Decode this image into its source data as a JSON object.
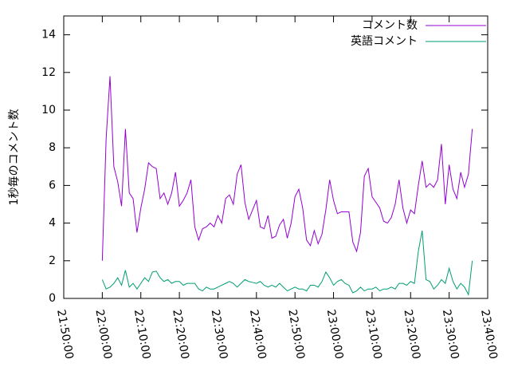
{
  "chart_data": {
    "type": "line",
    "ylabel": "1秒毎のコメント数",
    "xlim": [
      "21:50:00",
      "23:40:00"
    ],
    "xticks": [
      "21:50:00",
      "22:00:00",
      "22:10:00",
      "22:20:00",
      "22:30:00",
      "22:40:00",
      "22:50:00",
      "23:00:00",
      "23:10:00",
      "23:20:00",
      "23:30:00",
      "23:40:00"
    ],
    "ylim": [
      0,
      15
    ],
    "yticks": [
      0,
      2,
      4,
      6,
      8,
      10,
      12,
      14
    ],
    "legend": "top-right",
    "x": [
      "22:00:00",
      "22:01:00",
      "22:02:00",
      "22:03:00",
      "22:04:00",
      "22:05:00",
      "22:06:00",
      "22:07:00",
      "22:08:00",
      "22:09:00",
      "22:10:00",
      "22:11:00",
      "22:12:00",
      "22:13:00",
      "22:14:00",
      "22:15:00",
      "22:16:00",
      "22:17:00",
      "22:18:00",
      "22:19:00",
      "22:20:00",
      "22:21:00",
      "22:22:00",
      "22:23:00",
      "22:24:00",
      "22:25:00",
      "22:26:00",
      "22:27:00",
      "22:28:00",
      "22:29:00",
      "22:30:00",
      "22:31:00",
      "22:32:00",
      "22:33:00",
      "22:34:00",
      "22:35:00",
      "22:36:00",
      "22:37:00",
      "22:38:00",
      "22:39:00",
      "22:40:00",
      "22:41:00",
      "22:42:00",
      "22:43:00",
      "22:44:00",
      "22:45:00",
      "22:46:00",
      "22:47:00",
      "22:48:00",
      "22:49:00",
      "22:50:00",
      "22:51:00",
      "22:52:00",
      "22:53:00",
      "22:54:00",
      "22:55:00",
      "22:56:00",
      "22:57:00",
      "22:58:00",
      "22:59:00",
      "23:00:00",
      "23:01:00",
      "23:02:00",
      "23:03:00",
      "23:04:00",
      "23:05:00",
      "23:06:00",
      "23:07:00",
      "23:08:00",
      "23:09:00",
      "23:10:00",
      "23:11:00",
      "23:12:00",
      "23:13:00",
      "23:14:00",
      "23:15:00",
      "23:16:00",
      "23:17:00",
      "23:18:00",
      "23:19:00",
      "23:20:00",
      "23:21:00",
      "23:22:00",
      "23:23:00",
      "23:24:00",
      "23:25:00",
      "23:26:00",
      "23:27:00",
      "23:28:00",
      "23:29:00",
      "23:30:00",
      "23:31:00",
      "23:32:00",
      "23:33:00",
      "23:34:00",
      "23:35:00",
      "23:36:00"
    ],
    "series": [
      {
        "name": "コメント数",
        "color": "#9400d3",
        "values": [
          2.0,
          8.5,
          11.8,
          7.0,
          6.2,
          4.9,
          9.0,
          5.6,
          5.3,
          3.5,
          4.8,
          5.8,
          7.2,
          7.0,
          6.9,
          5.3,
          5.6,
          5.0,
          5.6,
          6.7,
          4.9,
          5.2,
          5.6,
          6.3,
          3.8,
          3.1,
          3.7,
          3.8,
          4.0,
          3.8,
          4.4,
          4.0,
          5.3,
          5.5,
          5.0,
          6.6,
          7.1,
          5.1,
          4.2,
          4.7,
          5.2,
          3.8,
          3.7,
          4.4,
          3.2,
          3.3,
          3.9,
          4.2,
          3.2,
          4.0,
          5.4,
          5.8,
          4.8,
          3.1,
          2.8,
          3.6,
          2.9,
          3.4,
          4.7,
          6.3,
          5.2,
          4.5,
          4.6,
          4.6,
          4.6,
          3.0,
          2.5,
          3.5,
          6.5,
          6.9,
          5.4,
          5.1,
          4.8,
          4.1,
          4.0,
          4.3,
          5.0,
          6.3,
          4.8,
          4.0,
          4.7,
          4.5,
          6.0,
          7.3,
          5.9,
          6.1,
          5.9,
          6.3,
          8.2,
          5.0,
          7.1,
          5.8,
          5.3,
          6.7,
          5.9,
          6.6,
          9.0
        ]
      },
      {
        "name": "英語コメント",
        "color": "#009e73",
        "values": [
          1.0,
          0.5,
          0.6,
          0.8,
          1.1,
          0.7,
          1.5,
          0.6,
          0.8,
          0.5,
          0.8,
          1.1,
          0.9,
          1.4,
          1.45,
          1.1,
          0.9,
          1.0,
          0.8,
          0.9,
          0.9,
          0.7,
          0.8,
          0.8,
          0.8,
          0.5,
          0.4,
          0.6,
          0.5,
          0.5,
          0.6,
          0.7,
          0.8,
          0.9,
          0.8,
          0.6,
          0.8,
          1.0,
          0.9,
          0.85,
          0.8,
          0.9,
          0.7,
          0.6,
          0.7,
          0.6,
          0.8,
          0.6,
          0.4,
          0.5,
          0.6,
          0.5,
          0.5,
          0.4,
          0.7,
          0.7,
          0.6,
          0.9,
          1.4,
          1.1,
          0.7,
          0.9,
          1.0,
          0.8,
          0.7,
          0.3,
          0.4,
          0.6,
          0.4,
          0.5,
          0.5,
          0.6,
          0.4,
          0.5,
          0.5,
          0.6,
          0.5,
          0.8,
          0.8,
          0.7,
          0.9,
          0.8,
          2.5,
          3.6,
          1.0,
          0.9,
          0.5,
          0.7,
          1.0,
          0.8,
          1.6,
          0.9,
          0.5,
          0.8,
          0.6,
          0.2,
          2.0
        ]
      }
    ]
  }
}
